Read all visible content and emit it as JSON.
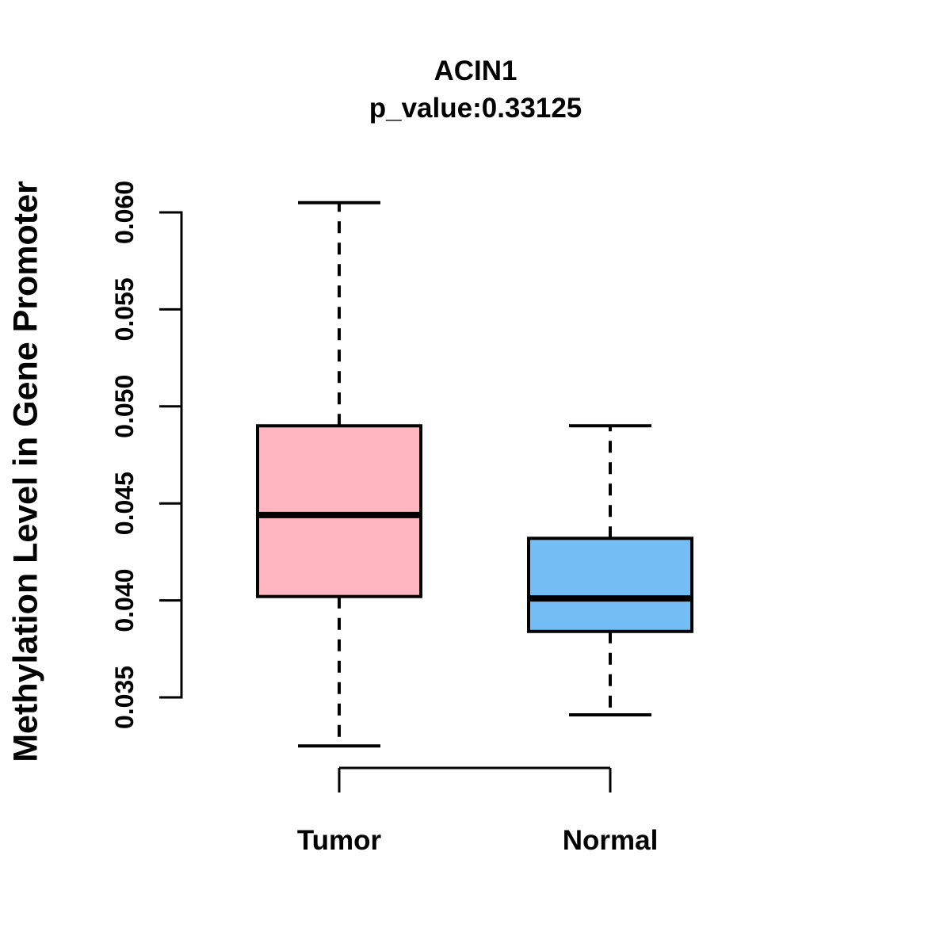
{
  "chart_data": {
    "type": "boxplot",
    "title": "ACIN1",
    "subtitle": "p_value:0.33125",
    "ylabel": "Methylation Level in Gene Promoter",
    "yticks": [
      "0.035",
      "0.040",
      "0.045",
      "0.050",
      "0.055",
      "0.060"
    ],
    "ylim": [
      0.0325,
      0.0605
    ],
    "grid": false,
    "legend": "none",
    "groups": [
      {
        "label": "Tumor",
        "color": "#FFB6C1",
        "whisker_low": 0.0325,
        "q1": 0.0402,
        "median": 0.0444,
        "q3": 0.049,
        "whisker_high": 0.0605
      },
      {
        "label": "Normal",
        "color": "#74BEF5",
        "whisker_low": 0.0341,
        "q1": 0.0384,
        "median": 0.0401,
        "q3": 0.0432,
        "whisker_high": 0.049
      }
    ]
  },
  "colors": {
    "stroke": "#000000",
    "background": "#FFFFFF"
  }
}
